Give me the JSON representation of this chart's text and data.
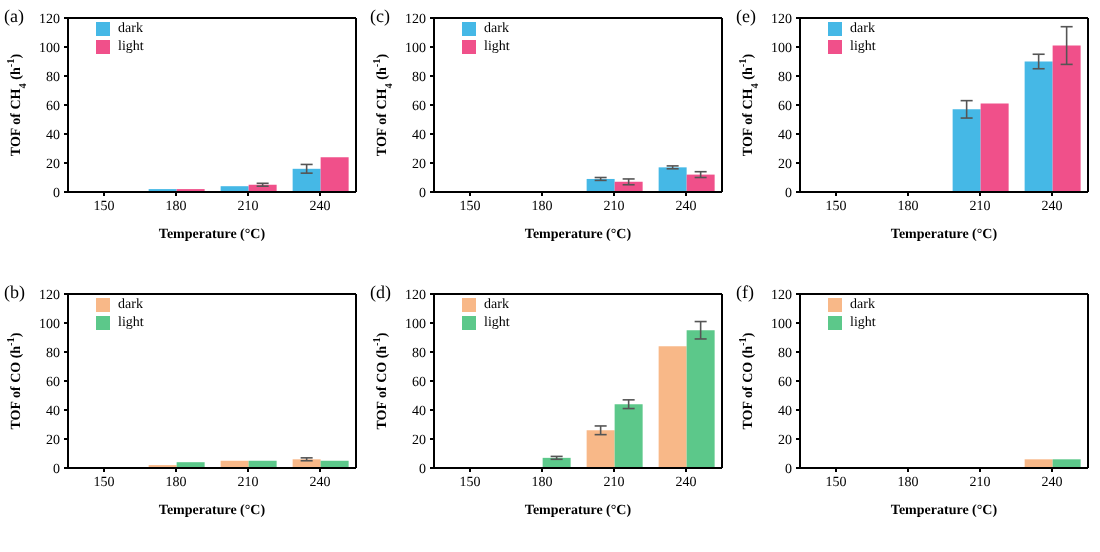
{
  "chart_data": [
    {
      "type": "bar",
      "title": "(a)",
      "xlabel": "Temperature (°C)",
      "ylabel": "TOF of CH$_{4}$ (h$^{-1}$)",
      "categories": [
        "150",
        "180",
        "210",
        "240"
      ],
      "ylim": [
        0,
        120
      ],
      "yticks": [
        0,
        20,
        40,
        60,
        80,
        100,
        120
      ],
      "legend": "top left",
      "series": [
        {
          "name": "dark",
          "color": "#45b8e6",
          "values": [
            0,
            2,
            4,
            16
          ],
          "errors": [
            null,
            null,
            null,
            3
          ]
        },
        {
          "name": "light",
          "color": "#f0508a",
          "values": [
            0,
            2,
            5,
            24
          ],
          "errors": [
            null,
            null,
            1,
            null
          ]
        }
      ]
    },
    {
      "type": "bar",
      "title": "(c)",
      "xlabel": "Temperature (°C)",
      "ylabel": "TOF of CH$_{4}$ (h$^{-1}$)",
      "categories": [
        "150",
        "180",
        "210",
        "240"
      ],
      "ylim": [
        0,
        120
      ],
      "yticks": [
        0,
        20,
        40,
        60,
        80,
        100,
        120
      ],
      "legend": "top left",
      "series": [
        {
          "name": "dark",
          "color": "#45b8e6",
          "values": [
            0,
            0,
            9,
            17
          ],
          "errors": [
            null,
            null,
            1,
            1
          ]
        },
        {
          "name": "light",
          "color": "#f0508a",
          "values": [
            0,
            0,
            7,
            12
          ],
          "errors": [
            null,
            null,
            2,
            2
          ]
        }
      ]
    },
    {
      "type": "bar",
      "title": "(e)",
      "xlabel": "Temperature (°C)",
      "ylabel": "TOF of CH$_{4}$ (h$^{-1}$)",
      "categories": [
        "150",
        "180",
        "210",
        "240"
      ],
      "ylim": [
        0,
        120
      ],
      "yticks": [
        0,
        20,
        40,
        60,
        80,
        100,
        120
      ],
      "legend": "top left",
      "series": [
        {
          "name": "dark",
          "color": "#45b8e6",
          "values": [
            0,
            0,
            57,
            90
          ],
          "errors": [
            null,
            null,
            6,
            5
          ]
        },
        {
          "name": "light",
          "color": "#f0508a",
          "values": [
            0,
            0,
            61,
            101
          ],
          "errors": [
            null,
            null,
            null,
            13
          ]
        }
      ]
    },
    {
      "type": "bar",
      "title": "(b)",
      "xlabel": "Temperature (°C)",
      "ylabel": "TOF of CO (h$^{-1}$)",
      "categories": [
        "150",
        "180",
        "210",
        "240"
      ],
      "ylim": [
        0,
        120
      ],
      "yticks": [
        0,
        20,
        40,
        60,
        80,
        100,
        120
      ],
      "legend": "top left",
      "series": [
        {
          "name": "dark",
          "color": "#f8b888",
          "values": [
            0,
            2,
            5,
            6
          ],
          "errors": [
            null,
            null,
            null,
            1
          ]
        },
        {
          "name": "light",
          "color": "#5cc88a",
          "values": [
            0,
            4,
            5,
            5
          ],
          "errors": [
            null,
            null,
            null,
            null
          ]
        }
      ]
    },
    {
      "type": "bar",
      "title": "(d)",
      "xlabel": "Temperature (°C)",
      "ylabel": "TOF of CO (h$^{-1}$)",
      "categories": [
        "150",
        "180",
        "210",
        "240"
      ],
      "ylim": [
        0,
        120
      ],
      "yticks": [
        0,
        20,
        40,
        60,
        80,
        100,
        120
      ],
      "legend": "top left",
      "series": [
        {
          "name": "dark",
          "color": "#f8b888",
          "values": [
            0,
            0,
            26,
            84
          ],
          "errors": [
            null,
            null,
            3,
            null
          ]
        },
        {
          "name": "light",
          "color": "#5cc88a",
          "values": [
            0,
            7,
            44,
            95
          ],
          "errors": [
            null,
            1,
            3,
            6
          ]
        }
      ]
    },
    {
      "type": "bar",
      "title": "(f)",
      "xlabel": "Temperature (°C)",
      "ylabel": "TOF of CO (h$^{-1}$)",
      "categories": [
        "150",
        "180",
        "210",
        "240"
      ],
      "ylim": [
        0,
        120
      ],
      "yticks": [
        0,
        20,
        40,
        60,
        80,
        100,
        120
      ],
      "legend": "top left",
      "series": [
        {
          "name": "dark",
          "color": "#f8b888",
          "values": [
            0,
            0,
            0,
            6
          ],
          "errors": [
            null,
            null,
            null,
            null
          ]
        },
        {
          "name": "light",
          "color": "#5cc88a",
          "values": [
            0,
            0,
            0,
            6
          ],
          "errors": [
            null,
            null,
            null,
            null
          ]
        }
      ]
    }
  ]
}
